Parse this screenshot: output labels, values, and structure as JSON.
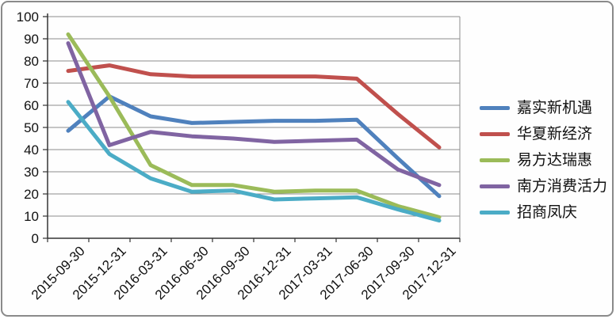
{
  "chart_data": {
    "type": "line",
    "title": "",
    "xlabel": "",
    "ylabel": "",
    "categories": [
      "2015-09-30",
      "2015-12-31",
      "2016-03-31",
      "2016-06-30",
      "2016-09-30",
      "2016-12-31",
      "2017-03-31",
      "2017-06-30",
      "2017-09-30",
      "2017-12-31"
    ],
    "series": [
      {
        "name": "嘉实新机遇",
        "color": "#4F81BD",
        "values": [
          48.5,
          64,
          55,
          52,
          52.5,
          53,
          53,
          53.5,
          36,
          19
        ]
      },
      {
        "name": "华夏新经济",
        "color": "#C0504D",
        "values": [
          75.5,
          78,
          74,
          73,
          73,
          73,
          73,
          72,
          56,
          41
        ]
      },
      {
        "name": "易方达瑞惠",
        "color": "#9BBB59",
        "values": [
          92,
          64,
          33,
          24,
          24,
          21,
          21.5,
          21.5,
          14.5,
          9.5
        ]
      },
      {
        "name": "南方消费活力",
        "color": "#8064A2",
        "values": [
          88,
          42,
          48,
          46,
          45,
          43.5,
          44,
          44.5,
          31,
          24
        ]
      },
      {
        "name": "招商凤庆",
        "color": "#4BACC6",
        "values": [
          61.5,
          38,
          27,
          21,
          21.5,
          17.5,
          18,
          18.5,
          13,
          8
        ]
      }
    ],
    "ylim": [
      0,
      100
    ],
    "ytick_step": 10,
    "ytick_labels": [
      "0",
      "10",
      "20",
      "30",
      "40",
      "50",
      "60",
      "70",
      "80",
      "90",
      "100"
    ],
    "grid": true,
    "legend_position": "right"
  },
  "style": {
    "gridline_color": "#8C8C8C",
    "axis_color": "#333333",
    "line_width": 5,
    "background": "#fefefe",
    "frame_border": "#8a8a8a"
  }
}
